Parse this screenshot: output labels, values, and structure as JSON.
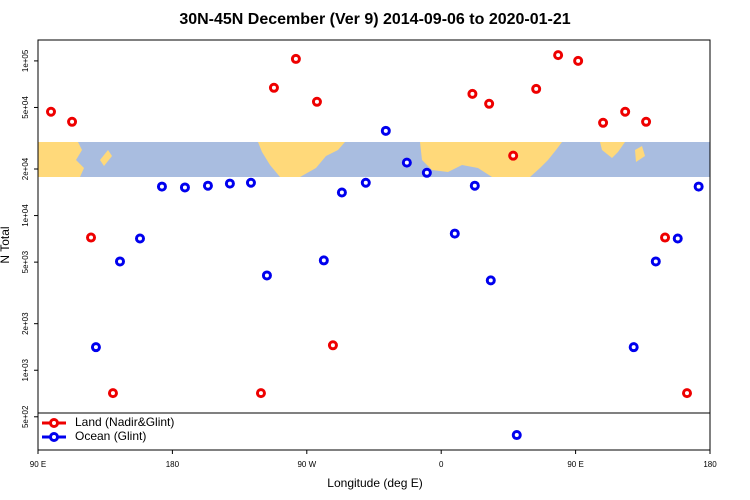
{
  "chart_data": {
    "type": "scatter",
    "title": "30N-45N December (Ver 9)   2014-09-06 to 2020-01-21",
    "x_label": "Longitude (deg E)",
    "y_label": "N Total",
    "yscale": "log",
    "xlim": [
      90,
      540
    ],
    "ylim": [
      305,
      136500
    ],
    "xticks": [
      {
        "value": 90,
        "label": "90 E"
      },
      {
        "value": 180,
        "label": "180"
      },
      {
        "value": 270,
        "label": "90 W"
      },
      {
        "value": 360,
        "label": "0"
      },
      {
        "value": 450,
        "label": "90 E"
      },
      {
        "value": 540,
        "label": "180"
      }
    ],
    "yticks": [
      {
        "value": 500,
        "label": "5e+02"
      },
      {
        "value": 1000,
        "label": "1e+03"
      },
      {
        "value": 2000,
        "label": "2e+03"
      },
      {
        "value": 5000,
        "label": "5e+03"
      },
      {
        "value": 10000,
        "label": "1e+04"
      },
      {
        "value": 20000,
        "label": "2e+04"
      },
      {
        "value": 50000,
        "label": "5e+04"
      },
      {
        "value": 100000,
        "label": "1e+05"
      }
    ],
    "legend": "bottom-left",
    "series": [
      {
        "name": "Land (Nadir&Glint)",
        "color": "#ee0000",
        "x": [
          98.7,
          112.8,
          125.5,
          140.2,
          239.3,
          248,
          262.7,
          276.8,
          287.5,
          380.9,
          392.1,
          408.2,
          423.6,
          438.3,
          451.7,
          468.4,
          483.2,
          497.2,
          509.9,
          524.6
        ],
        "values": [
          46900,
          40400,
          7210,
          711,
          711,
          67000,
          103000,
          54400,
          1450,
          61200,
          52800,
          24400,
          65900,
          109000,
          100000,
          39800,
          46900,
          40400,
          7210,
          711
        ]
      },
      {
        "name": "Ocean (Glint)",
        "color": "#0000ee",
        "x": [
          128.8,
          144.9,
          158.3,
          173,
          188.4,
          203.8,
          218.5,
          232.6,
          243.3,
          281.4,
          293.5,
          309.5,
          322.9,
          337,
          350.4,
          369.1,
          382.5,
          393.2,
          410.6,
          488.9,
          503.7,
          518.4,
          532.4
        ],
        "values": [
          1410,
          5050,
          7110,
          15400,
          15200,
          15600,
          16100,
          16300,
          4100,
          5130,
          14100,
          16300,
          35300,
          22000,
          18900,
          7650,
          15600,
          3810,
          381,
          1410,
          5050,
          7110,
          15400
        ]
      }
    ]
  }
}
